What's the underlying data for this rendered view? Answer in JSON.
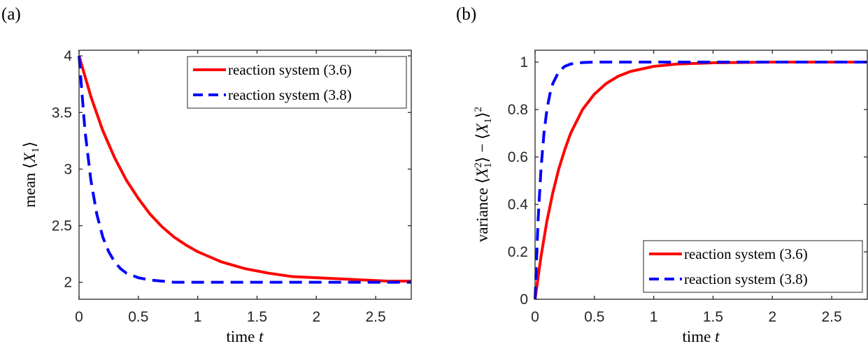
{
  "chart_data": [
    {
      "type": "line",
      "panel_label": "(a)",
      "xlabel": "time t",
      "ylabel": "mean ⟨X1⟩",
      "xlim": [
        0,
        2.8
      ],
      "ylim": [
        1.85,
        4.05
      ],
      "xticks": [
        "0",
        "0.5",
        "1",
        "1.5",
        "2",
        "2.5"
      ],
      "yticks": [
        "2",
        "2.5",
        "3",
        "3.5",
        "4"
      ],
      "legend_position": "top-right",
      "series": [
        {
          "name": "reaction system (3.6)",
          "color": "#ff0000",
          "style": "solid",
          "x": [
            0,
            0.1,
            0.2,
            0.3,
            0.4,
            0.5,
            0.6,
            0.7,
            0.8,
            0.9,
            1.0,
            1.2,
            1.4,
            1.6,
            1.8,
            2.0,
            2.2,
            2.4,
            2.6,
            2.8
          ],
          "y": [
            4.0,
            3.64,
            3.34,
            3.1,
            2.9,
            2.74,
            2.6,
            2.49,
            2.4,
            2.33,
            2.27,
            2.18,
            2.12,
            2.08,
            2.05,
            2.04,
            2.03,
            2.02,
            2.01,
            2.01
          ]
        },
        {
          "name": "reaction system (3.8)",
          "color": "#0000ff",
          "style": "dashed",
          "x": [
            0,
            0.05,
            0.1,
            0.15,
            0.2,
            0.25,
            0.3,
            0.35,
            0.4,
            0.5,
            0.6,
            0.7,
            0.8,
            1.0,
            1.5,
            2.0,
            2.5,
            2.8
          ],
          "y": [
            4.0,
            3.34,
            2.9,
            2.6,
            2.4,
            2.27,
            2.18,
            2.12,
            2.08,
            2.04,
            2.02,
            2.01,
            2.0,
            2.0,
            2.0,
            2.0,
            2.0,
            2.0
          ]
        }
      ]
    },
    {
      "type": "line",
      "panel_label": "(b)",
      "xlabel": "time t",
      "ylabel": "variance ⟨X1²⟩ − ⟨X1⟩²",
      "xlim": [
        0,
        2.8
      ],
      "ylim": [
        0,
        1.05
      ],
      "xticks": [
        "0",
        "0.5",
        "1",
        "1.5",
        "2",
        "2.5"
      ],
      "yticks": [
        "0",
        "0.2",
        "0.4",
        "0.6",
        "0.8",
        "1"
      ],
      "legend_position": "bottom-right",
      "series": [
        {
          "name": "reaction system (3.6)",
          "color": "#ff0000",
          "style": "solid",
          "x": [
            0,
            0.05,
            0.1,
            0.15,
            0.2,
            0.25,
            0.3,
            0.4,
            0.5,
            0.6,
            0.7,
            0.8,
            1.0,
            1.2,
            1.5,
            2.0,
            2.5,
            2.8
          ],
          "y": [
            0,
            0.18,
            0.33,
            0.45,
            0.55,
            0.63,
            0.7,
            0.8,
            0.865,
            0.91,
            0.94,
            0.96,
            0.982,
            0.992,
            0.997,
            1.0,
            1.0,
            1.0
          ]
        },
        {
          "name": "reaction system (3.8)",
          "color": "#0000ff",
          "style": "dashed",
          "x": [
            0,
            0.025,
            0.05,
            0.075,
            0.1,
            0.125,
            0.15,
            0.2,
            0.25,
            0.3,
            0.4,
            0.5,
            0.7,
            1.0,
            1.5,
            2.0,
            2.5,
            2.8
          ],
          "y": [
            0,
            0.33,
            0.55,
            0.7,
            0.8,
            0.865,
            0.91,
            0.96,
            0.982,
            0.992,
            0.998,
            1.0,
            1.0,
            1.0,
            1.0,
            1.0,
            1.0,
            1.0
          ]
        }
      ]
    }
  ]
}
